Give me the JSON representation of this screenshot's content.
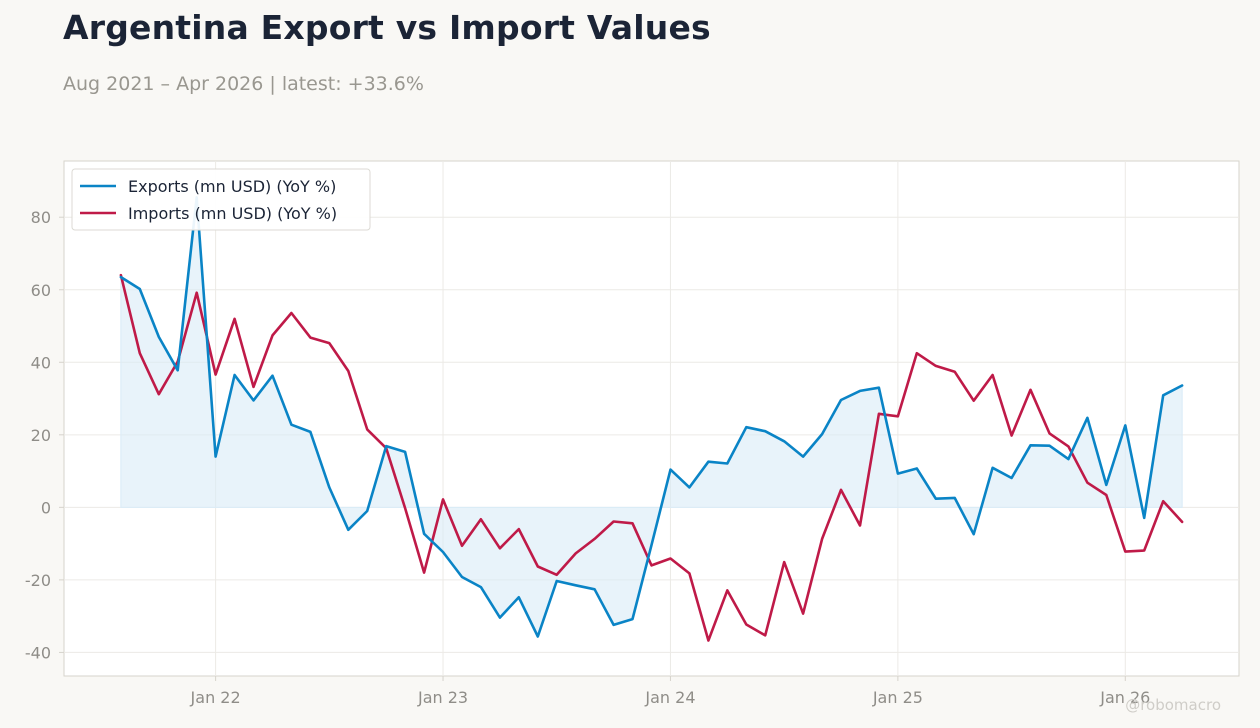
{
  "header": {
    "title": "Argentina Export vs Import Values",
    "subtitle": "Aug 2021 – Apr 2026 | latest: +33.6%"
  },
  "watermark": "@robomacro",
  "colors": {
    "exports": "#0a84c6",
    "imports": "#bf1a48",
    "fill": "#d9ebf7",
    "grid": "#eceae6",
    "axis": "#d6d3cc",
    "background": "#f9f8f5",
    "plot_background": "#ffffff"
  },
  "chart_data": {
    "type": "line",
    "title": "Argentina Export vs Import Values",
    "subtitle": "Aug 2021 – Apr 2026 | latest: +33.6%",
    "x": [
      "2021-08",
      "2021-09",
      "2021-10",
      "2021-11",
      "2021-12",
      "2022-01",
      "2022-02",
      "2022-03",
      "2022-04",
      "2022-05",
      "2022-06",
      "2022-07",
      "2022-08",
      "2022-09",
      "2022-10",
      "2022-11",
      "2022-12",
      "2023-01",
      "2023-02",
      "2023-03",
      "2023-04",
      "2023-05",
      "2023-06",
      "2023-07",
      "2023-08",
      "2023-09",
      "2023-10",
      "2023-11",
      "2023-12",
      "2024-01",
      "2024-02",
      "2024-03",
      "2024-04",
      "2024-05",
      "2024-06",
      "2024-07",
      "2024-08",
      "2024-09",
      "2024-10",
      "2024-11",
      "2024-12",
      "2025-01",
      "2025-02",
      "2025-03",
      "2025-04",
      "2025-05",
      "2025-06",
      "2025-07",
      "2025-08",
      "2025-09",
      "2025-10",
      "2025-11",
      "2025-12",
      "2026-01",
      "2026-02",
      "2026-03",
      "2026-04"
    ],
    "series": [
      {
        "name": "Exports (mn USD) (YoY %)",
        "values": [
          63.5,
          60.2,
          47,
          37.8,
          85.5,
          14,
          36.5,
          29.5,
          36.3,
          22.8,
          20.8,
          5.5,
          -6.2,
          -1,
          16.9,
          15.3,
          -7.3,
          -12.3,
          -19.2,
          -22,
          -30.4,
          -24.8,
          -35.6,
          -20.3,
          -21.5,
          -22.6,
          -32.4,
          -30.8,
          -10.4,
          10.4,
          5.5,
          12.6,
          12.1,
          22.1,
          21,
          18.2,
          14,
          20.2,
          29.6,
          32.1,
          33,
          9.3,
          10.7,
          2.4,
          2.6,
          -7.4,
          10.9,
          8.1,
          17.1,
          17,
          13.3,
          24.7,
          6.2,
          22.6,
          -2.9,
          30.9,
          33.6
        ]
      },
      {
        "name": "Imports (mn USD) (YoY %)",
        "values": [
          64,
          42.5,
          31.2,
          40.2,
          59.2,
          36.6,
          52,
          33.2,
          47.4,
          53.6,
          46.8,
          45.3,
          37.6,
          21.5,
          16.3,
          -0.2,
          -18,
          2.2,
          -10.6,
          -3.3,
          -11.3,
          -6,
          -16.3,
          -18.6,
          -12.7,
          -8.7,
          -3.9,
          -4.4,
          -16,
          -14.1,
          -18.2,
          -36.7,
          -22.9,
          -32.3,
          -35.3,
          -15.1,
          -29.3,
          -8.7,
          4.8,
          -5,
          25.8,
          25.1,
          42.5,
          39,
          37.4,
          29.4,
          36.5,
          19.8,
          32.4,
          20.4,
          16.8,
          6.8,
          3.4,
          -12.2,
          -11.9,
          1.7,
          -4
        ]
      }
    ],
    "x_ticks": [
      "Jan 22",
      "Jan 23",
      "Jan 24",
      "Jan 25",
      "Jan 26"
    ],
    "y_ticks": [
      -40,
      -20,
      0,
      20,
      40,
      60,
      80
    ],
    "ylim": [
      -46.5,
      95.5
    ],
    "xlim": [
      "2021-05",
      "2026-07"
    ],
    "grid": true,
    "legend": "top-left",
    "fill_between": "Exports area to zero"
  }
}
